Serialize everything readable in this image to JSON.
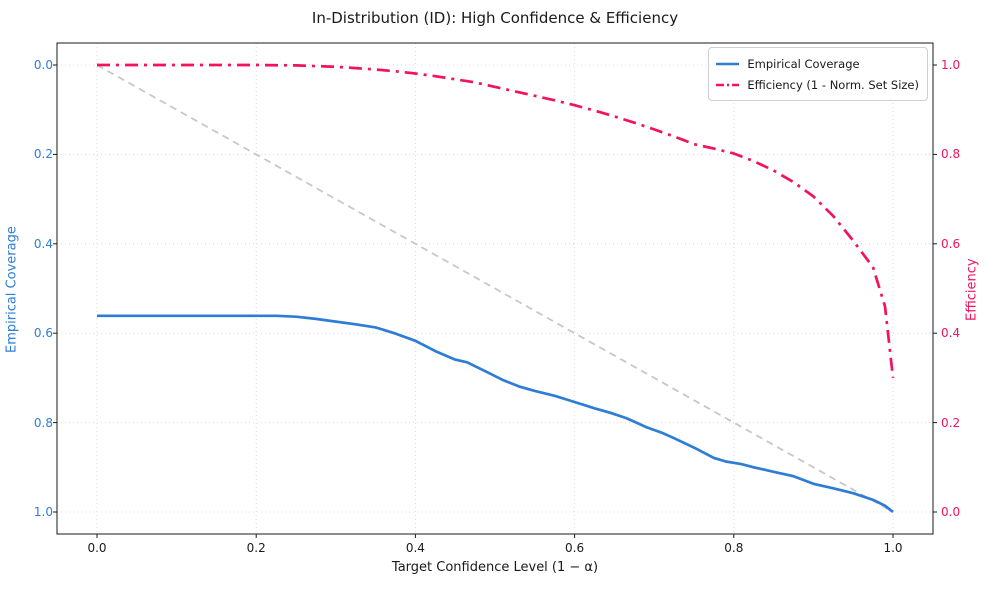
{
  "title": "In-Distribution (ID): High Confidence & Efficiency",
  "chart_data": {
    "type": "line",
    "title": "In-Distribution (ID): High Confidence & Efficiency",
    "xlabel": "Target Confidence Level (1 − α)",
    "grid": "dotted",
    "xlim": [
      -0.05,
      1.05
    ],
    "x_ticks": [
      "0.0",
      "0.2",
      "0.4",
      "0.6",
      "0.8",
      "1.0"
    ],
    "left_axis": {
      "label": "Empirical Coverage",
      "color": "#2d7dd7",
      "range": [
        0,
        1
      ],
      "inverted": true,
      "ticks_top_to_bottom": [
        "0.0",
        "0.2",
        "0.4",
        "0.6",
        "0.8",
        "1.0"
      ]
    },
    "right_axis": {
      "label": "Efficiency",
      "color": "#f2125f",
      "range": [
        0,
        1
      ],
      "inverted": false,
      "ticks_top_to_bottom": [
        "1.0",
        "0.8",
        "0.6",
        "0.4",
        "0.2",
        "0.0"
      ]
    },
    "legend": {
      "position": "upper right",
      "entries": [
        "Empirical Coverage",
        "Efficiency (1 - Norm. Set Size)"
      ]
    },
    "series": [
      {
        "name": "Empirical Coverage",
        "axis": "left",
        "color": "#2d7dd7",
        "style": "solid",
        "points": [
          [
            0,
            0.561
          ],
          [
            0.05,
            0.561
          ],
          [
            0.1,
            0.561
          ],
          [
            0.15,
            0.561
          ],
          [
            0.2,
            0.561
          ],
          [
            0.225,
            0.561
          ],
          [
            0.25,
            0.563
          ],
          [
            0.275,
            0.568
          ],
          [
            0.3,
            0.574
          ],
          [
            0.325,
            0.58
          ],
          [
            0.35,
            0.587
          ],
          [
            0.375,
            0.601
          ],
          [
            0.4,
            0.617
          ],
          [
            0.425,
            0.64
          ],
          [
            0.45,
            0.659
          ],
          [
            0.465,
            0.665
          ],
          [
            0.49,
            0.687
          ],
          [
            0.51,
            0.705
          ],
          [
            0.53,
            0.719
          ],
          [
            0.55,
            0.729
          ],
          [
            0.575,
            0.74
          ],
          [
            0.6,
            0.754
          ],
          [
            0.625,
            0.768
          ],
          [
            0.645,
            0.778
          ],
          [
            0.665,
            0.79
          ],
          [
            0.69,
            0.81
          ],
          [
            0.71,
            0.823
          ],
          [
            0.725,
            0.835
          ],
          [
            0.75,
            0.856
          ],
          [
            0.775,
            0.879
          ],
          [
            0.79,
            0.887
          ],
          [
            0.81,
            0.893
          ],
          [
            0.825,
            0.9
          ],
          [
            0.85,
            0.91
          ],
          [
            0.875,
            0.92
          ],
          [
            0.9,
            0.937
          ],
          [
            0.925,
            0.947
          ],
          [
            0.95,
            0.958
          ],
          [
            0.975,
            0.973
          ],
          [
            0.99,
            0.986
          ],
          [
            1,
            1
          ]
        ]
      },
      {
        "name": "Efficiency (1 - Norm. Set Size)",
        "axis": "right",
        "color": "#f2125f",
        "style": "dashdot",
        "points": [
          [
            0,
            1
          ],
          [
            0.05,
            1
          ],
          [
            0.1,
            1
          ],
          [
            0.15,
            1
          ],
          [
            0.2,
            1
          ],
          [
            0.25,
            0.999
          ],
          [
            0.3,
            0.996
          ],
          [
            0.325,
            0.993
          ],
          [
            0.35,
            0.99
          ],
          [
            0.375,
            0.986
          ],
          [
            0.4,
            0.981
          ],
          [
            0.425,
            0.975
          ],
          [
            0.45,
            0.968
          ],
          [
            0.475,
            0.961
          ],
          [
            0.5,
            0.951
          ],
          [
            0.525,
            0.941
          ],
          [
            0.55,
            0.931
          ],
          [
            0.575,
            0.921
          ],
          [
            0.6,
            0.91
          ],
          [
            0.625,
            0.898
          ],
          [
            0.65,
            0.885
          ],
          [
            0.675,
            0.871
          ],
          [
            0.7,
            0.856
          ],
          [
            0.725,
            0.84
          ],
          [
            0.75,
            0.823
          ],
          [
            0.775,
            0.813
          ],
          [
            0.8,
            0.802
          ],
          [
            0.825,
            0.785
          ],
          [
            0.85,
            0.764
          ],
          [
            0.875,
            0.738
          ],
          [
            0.9,
            0.706
          ],
          [
            0.925,
            0.662
          ],
          [
            0.95,
            0.607
          ],
          [
            0.975,
            0.547
          ],
          [
            0.99,
            0.46
          ],
          [
            1,
            0.3
          ]
        ]
      }
    ],
    "reference_line": {
      "name": "ideal calibration (y = x)",
      "axis": "left",
      "color": "#c8c8c8",
      "style": "dashed",
      "points": [
        [
          0,
          0
        ],
        [
          1,
          1
        ]
      ]
    }
  }
}
